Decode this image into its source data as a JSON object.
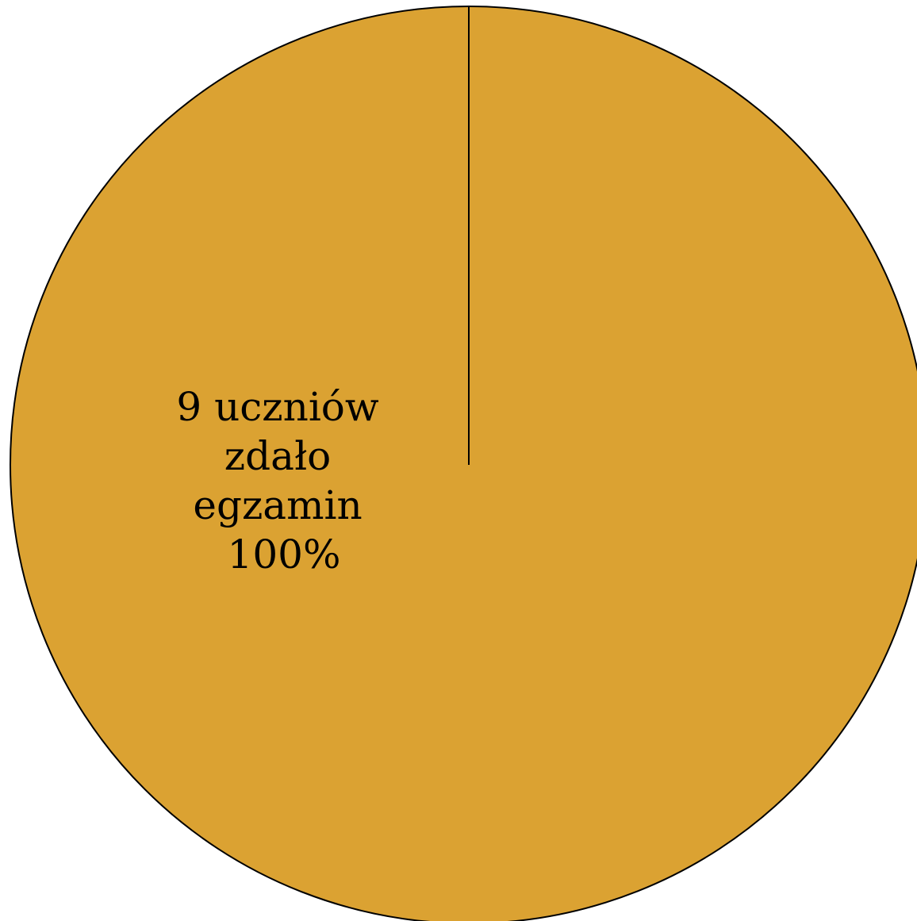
{
  "chart_data": {
    "type": "pie",
    "slices": [
      {
        "label_lines": [
          "9 uczniów",
          "zdało",
          "egzamin",
          "100%"
        ],
        "value": 9,
        "percent": 100,
        "color": "#DBA232"
      }
    ],
    "legend": "none",
    "title": ""
  }
}
